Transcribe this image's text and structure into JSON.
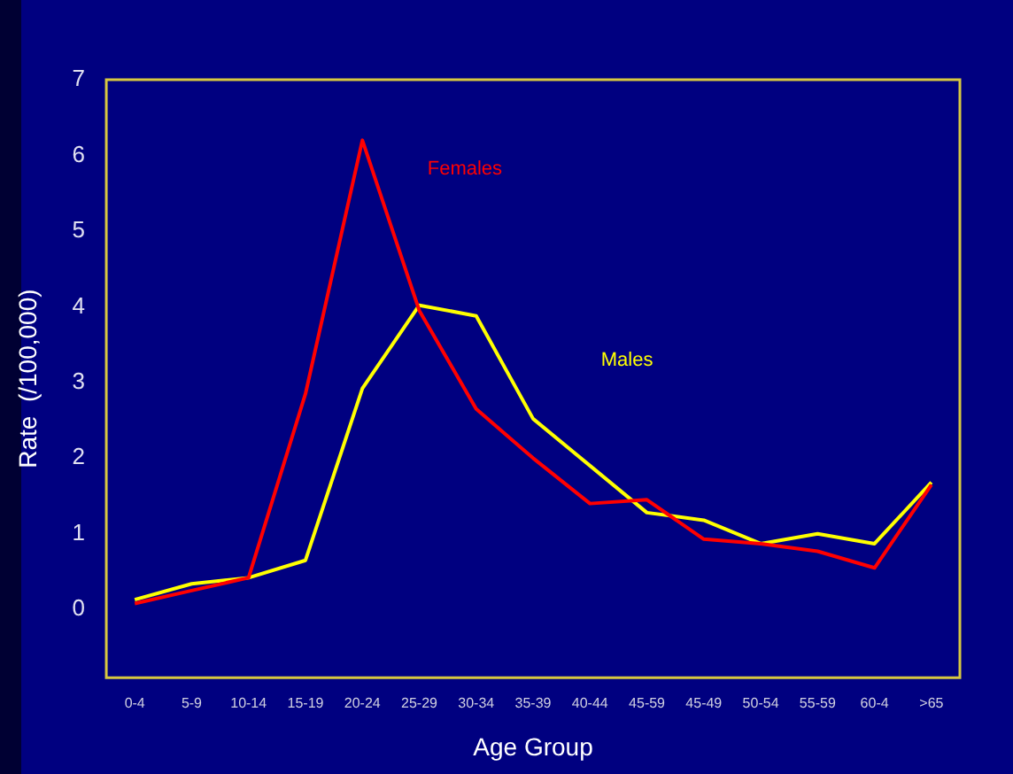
{
  "chart_data": {
    "type": "line",
    "xlabel": "Age Group",
    "ylabel": "Rate  (/100,000)",
    "categories": [
      "0-4",
      "5-9",
      "10-14",
      "15-19",
      "20-24",
      "25-29",
      "30-34",
      "35-39",
      "40-44",
      "45-59",
      "45-49",
      "50-54",
      "55-59",
      "60-4",
      ">65"
    ],
    "series": [
      {
        "name": "Females",
        "color": "#ff0000",
        "values": [
          0.08,
          0.25,
          0.42,
          2.85,
          6.2,
          3.95,
          2.65,
          2.0,
          1.4,
          1.45,
          0.93,
          0.87,
          0.77,
          0.55,
          1.65
        ]
      },
      {
        "name": "Males",
        "color": "#ffff00",
        "values": [
          0.13,
          0.34,
          0.42,
          0.65,
          2.92,
          4.02,
          3.88,
          2.52,
          1.9,
          1.28,
          1.18,
          0.87,
          1.0,
          0.87,
          1.68
        ]
      }
    ],
    "ylim": [
      -0.9,
      7
    ],
    "yticks": [
      0,
      1,
      2,
      3,
      4,
      5,
      6,
      7
    ],
    "grid": false,
    "legend": false,
    "marker": "none",
    "line_style": "solid"
  }
}
